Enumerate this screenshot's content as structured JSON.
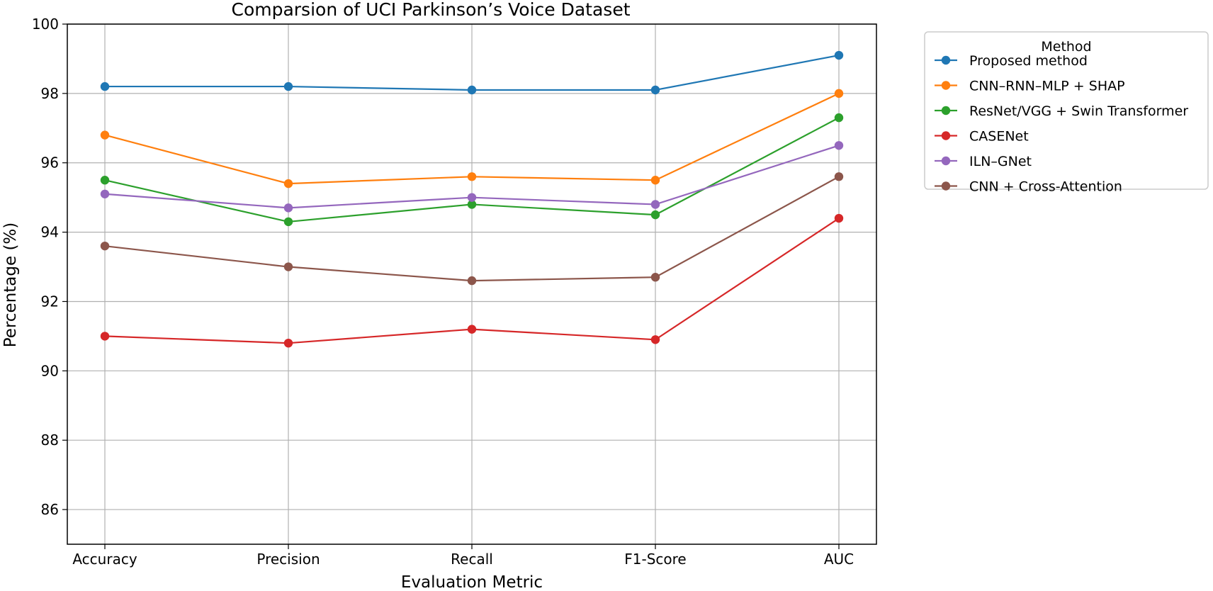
{
  "chart_data": {
    "type": "line",
    "title": "Comparsion of UCI Parkinson’s Voice Dataset",
    "xlabel": "Evaluation Metric",
    "ylabel": "Percentage (%)",
    "categories": [
      "Accuracy",
      "Precision",
      "Recall",
      "F1-Score",
      "AUC"
    ],
    "ylim": [
      85,
      100
    ],
    "yticks": [
      86,
      88,
      90,
      92,
      94,
      96,
      98,
      100
    ],
    "grid": true,
    "legend": {
      "title": "Method",
      "placement": "outside-top-right"
    },
    "series": [
      {
        "name": "Proposed method",
        "color": "#1f77b4",
        "values": [
          98.2,
          98.2,
          98.1,
          98.1,
          99.1
        ]
      },
      {
        "name": "CNN–RNN–MLP + SHAP",
        "color": "#ff7f0e",
        "values": [
          96.8,
          95.4,
          95.6,
          95.5,
          98.0
        ]
      },
      {
        "name": "ResNet/VGG + Swin Transformer",
        "color": "#2ca02c",
        "values": [
          95.5,
          94.3,
          94.8,
          94.5,
          97.3
        ]
      },
      {
        "name": "CASENet",
        "color": "#d62728",
        "values": [
          91.0,
          90.8,
          91.2,
          90.9,
          94.4
        ]
      },
      {
        "name": "ILN–GNet",
        "color": "#9467bd",
        "values": [
          95.1,
          94.7,
          95.0,
          94.8,
          96.5
        ]
      },
      {
        "name": "CNN + Cross-Attention",
        "color": "#8c564b",
        "values": [
          93.6,
          93.0,
          92.6,
          92.7,
          95.6
        ]
      }
    ]
  }
}
